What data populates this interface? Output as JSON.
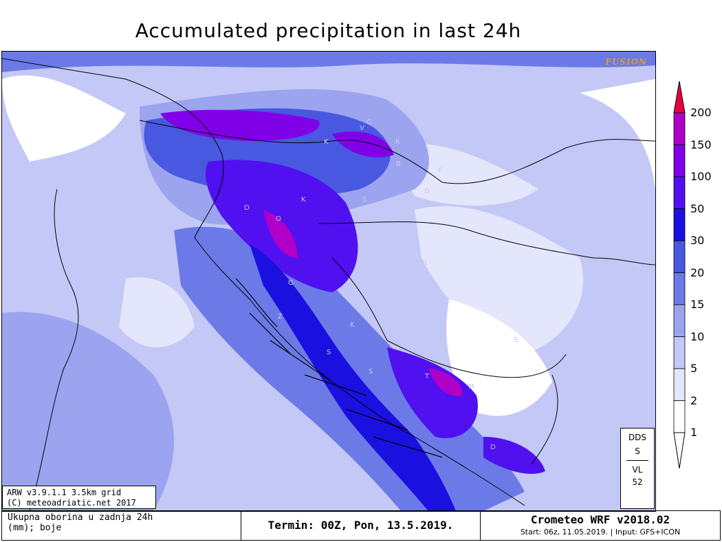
{
  "title": "Accumulated precipitation in last 24h",
  "brand_tag": "FUSION",
  "model_info": {
    "line1": "ARW v3.9.1.1 3.5km grid",
    "line2": "(C) meteoadriatic.net 2017"
  },
  "station_info": {
    "top1": "DDS",
    "top2": "S",
    "bottom1": "VL",
    "bottom2": "52"
  },
  "footer": {
    "description_line1": "Ukupna oborina u zadnja 24h",
    "description_line2": "(mm); boje",
    "termin": "Termin: 00Z, Pon, 13.5.2019.",
    "version": "Crometeo WRF v2018.02",
    "start_info": "Start: 06z, 11.05.2019. | Input: GFS+ICON"
  },
  "map_labels": [
    "C",
    "V",
    "K",
    "K",
    "B",
    "Y",
    "D",
    "K",
    "S",
    "D",
    "O",
    "BL",
    "G",
    "Z",
    "K",
    "S",
    "S",
    "T",
    "M",
    "D",
    "S",
    "U"
  ],
  "legend": {
    "unit": "mm",
    "levels": [
      {
        "label": "200",
        "color": "#e8003c"
      },
      {
        "label": "150",
        "color": "#b000c8"
      },
      {
        "label": "100",
        "color": "#8000e8"
      },
      {
        "label": "50",
        "color": "#5010f0"
      },
      {
        "label": "30",
        "color": "#1a10e0"
      },
      {
        "label": "20",
        "color": "#4858e0"
      },
      {
        "label": "15",
        "color": "#6c7ae8"
      },
      {
        "label": "10",
        "color": "#9ca4f0"
      },
      {
        "label": "5",
        "color": "#c4c8f6"
      },
      {
        "label": "2",
        "color": "#e4e6fb"
      },
      {
        "label": "1",
        "color": "#ffffff"
      }
    ]
  }
}
